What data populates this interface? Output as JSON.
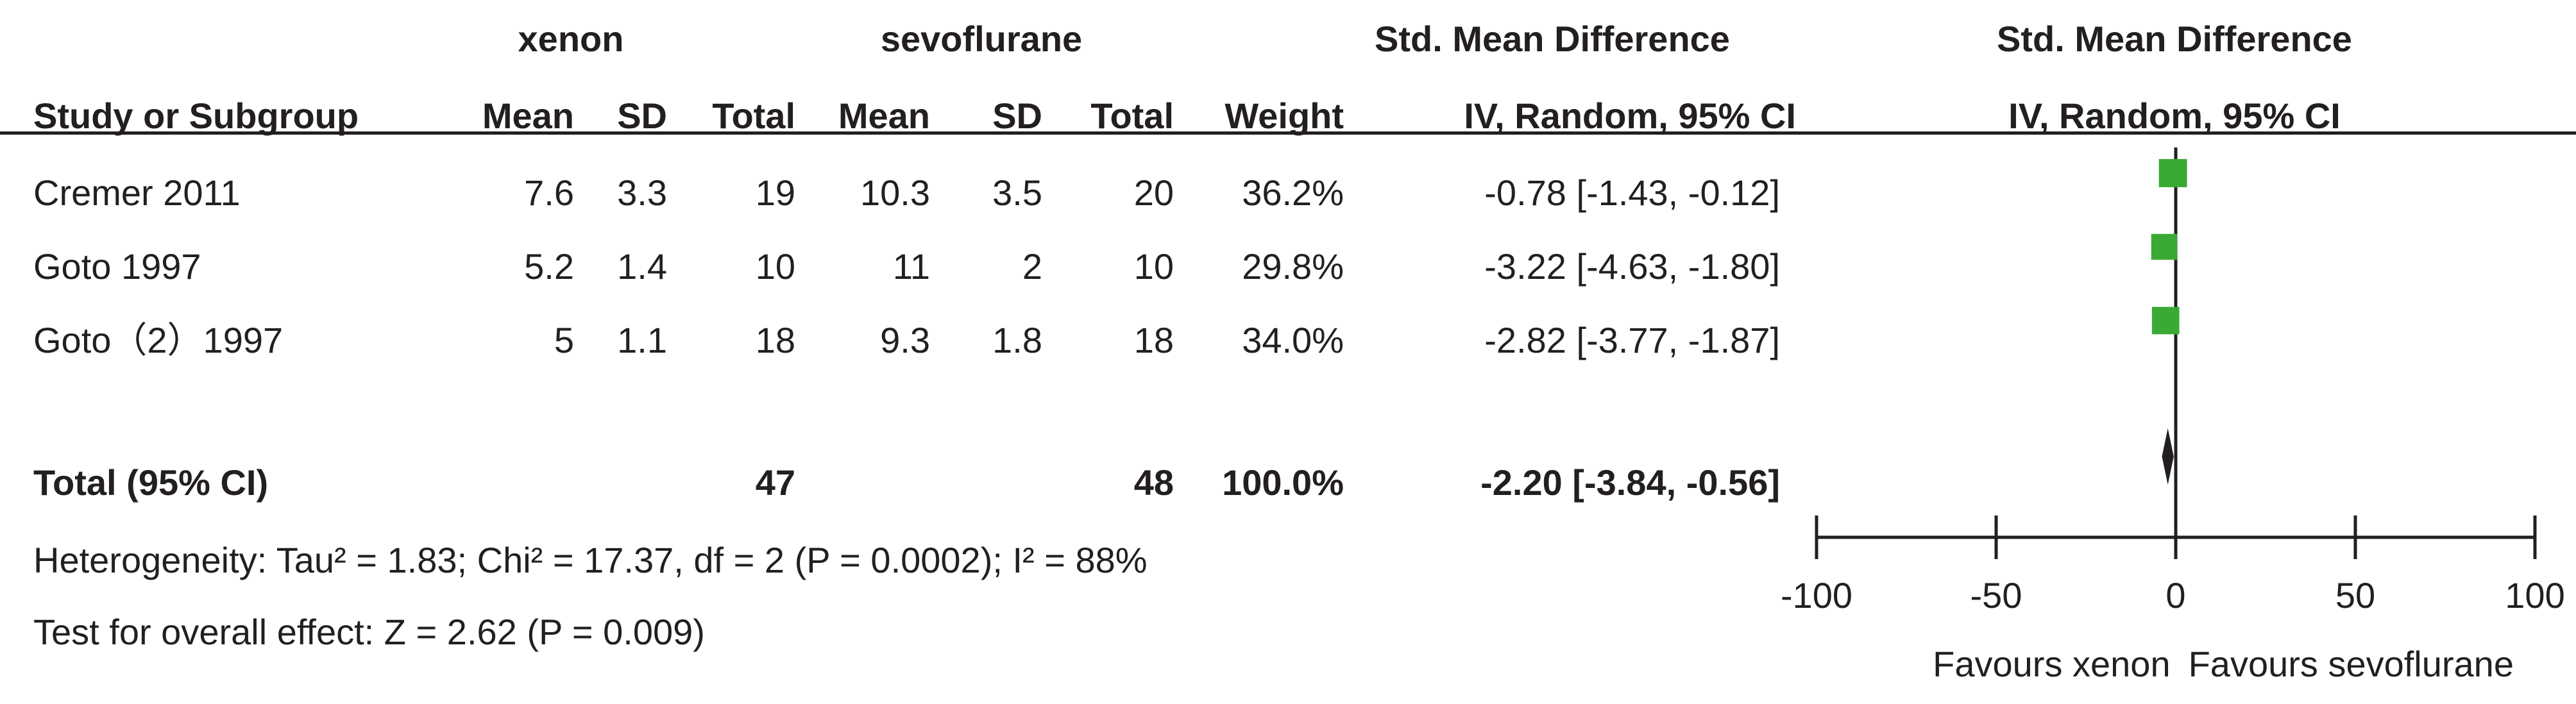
{
  "header": {
    "group1": "xenon",
    "group2": "sevoflurane",
    "effect_title": "Std. Mean Difference",
    "plot_title": "Std. Mean Difference",
    "col_study": "Study or Subgroup",
    "col_mean1": "Mean",
    "col_sd1": "SD",
    "col_total1": "Total",
    "col_mean2": "Mean",
    "col_sd2": "SD",
    "col_total2": "Total",
    "col_weight": "Weight",
    "col_method": "IV, Random, 95% CI",
    "plot_method": "IV, Random, 95% CI"
  },
  "studies": [
    {
      "name": "Cremer 2011",
      "mean1": "7.6",
      "sd1": "3.3",
      "total1": "19",
      "mean2": "10.3",
      "sd2": "3.5",
      "total2": "20",
      "weight": "36.2%",
      "ci": "-0.78 [-1.43, -0.12]"
    },
    {
      "name": "Goto 1997",
      "mean1": "5.2",
      "sd1": "1.4",
      "total1": "10",
      "mean2": "11",
      "sd2": "2",
      "total2": "10",
      "weight": "29.8%",
      "ci": "-3.22 [-4.63, -1.80]"
    },
    {
      "name": "Goto（2）1997",
      "mean1": "5",
      "sd1": "1.1",
      "total1": "18",
      "mean2": "9.3",
      "sd2": "1.8",
      "total2": "18",
      "weight": "34.0%",
      "ci": "-2.82 [-3.77, -1.87]"
    }
  ],
  "total": {
    "label": "Total (95% CI)",
    "total1": "47",
    "total2": "48",
    "weight": "100.0%",
    "ci": "-2.20 [-3.84, -0.56]"
  },
  "heterogeneity": "Heterogeneity: Tau² = 1.83; Chi² = 17.37, df = 2 (P = 0.0002); I² = 88%",
  "overall_effect": "Test for overall effect: Z = 2.62 (P = 0.009)",
  "colors": {
    "study_marker": "#3aaa35",
    "text": "#231f20",
    "diamond": "#231f20"
  },
  "chart_data": {
    "type": "scatter",
    "title": "Std. Mean Difference",
    "subtitle": "IV, Random, 95% CI",
    "xlim": [
      -100,
      100
    ],
    "x_ticks": [
      -100,
      -50,
      0,
      50,
      100
    ],
    "x_tick_labels": [
      "-100",
      "-50",
      "0",
      "50",
      "100"
    ],
    "favours_left": "Favours xenon",
    "favours_right": "Favours sevoflurane",
    "points": [
      {
        "study": "Cremer 2011",
        "estimate": -0.78,
        "ci_low": -1.43,
        "ci_high": -0.12,
        "weight": 36.2
      },
      {
        "study": "Goto 1997",
        "estimate": -3.22,
        "ci_low": -4.63,
        "ci_high": -1.8,
        "weight": 29.8
      },
      {
        "study": "Goto（2）1997",
        "estimate": -2.82,
        "ci_low": -3.77,
        "ci_high": -1.87,
        "weight": 34.0
      }
    ],
    "pooled": {
      "estimate": -2.2,
      "ci_low": -3.84,
      "ci_high": -0.56
    }
  }
}
